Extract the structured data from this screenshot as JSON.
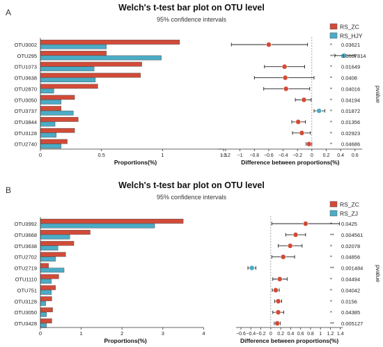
{
  "panels": [
    {
      "panel_label": "A",
      "title": "Welch's t-test bar plot on OTU level",
      "subtitle": "95% confidence intervals",
      "legend": [
        {
          "label": "RS_ZC",
          "color": "#d24b38"
        },
        {
          "label": "RS_HJY",
          "color": "#4bacc6"
        }
      ],
      "bar_xlabel": "Proportions(%)",
      "diff_xlabel": "Difference between proportions(%)",
      "pvalue_label": "pvalue",
      "bar_ticks": [
        "0",
        "0.5",
        "1",
        "1.5"
      ],
      "diff_ticks": [
        "−1.2",
        "−1",
        "−0.8",
        "−0.6",
        "−0.4",
        "−0.2",
        "0",
        "0.2",
        "0.4",
        "0.6"
      ],
      "otus": [
        "OTU3002",
        "OTU295",
        "OTU1073",
        "OTU3638",
        "OTU2870",
        "OTU3050",
        "OTU3737",
        "OTU3844",
        "OTU3128",
        "OTU2740"
      ],
      "stars": [
        "*",
        "***",
        "*",
        "*",
        "*",
        "*",
        "*",
        "*",
        "*",
        "*"
      ],
      "pvalues": [
        "0.03621",
        "0.0007814",
        "0.01649",
        "0.0408",
        "0.04016",
        "0.04194",
        "0.01872",
        "0.01356",
        "0.02923",
        "0.04686"
      ]
    },
    {
      "panel_label": "B",
      "title": "Welch's t-test bar plot on OTU level",
      "subtitle": "95% confidence intervals",
      "legend": [
        {
          "label": "RS_ZC",
          "color": "#d24b38"
        },
        {
          "label": "RS_ZJ",
          "color": "#4bacc6"
        }
      ],
      "bar_xlabel": "Proportions(%)",
      "diff_xlabel": "Difference between proportions(%)",
      "pvalue_label": "pvalue",
      "bar_ticks": [
        "0",
        "1",
        "2",
        "3",
        "4"
      ],
      "diff_ticks": [
        "−0.6",
        "−0.4",
        "−0.2",
        "0",
        "0.2",
        "0.4",
        "0.6",
        "0.8",
        "1",
        "1.2",
        "1.4"
      ],
      "otus": [
        "OTU3992",
        "OTU3668",
        "OTU3638",
        "OTU2702",
        "OTU2719",
        "OTU1110",
        "OTU751",
        "OTU3128",
        "OTU3050",
        "OTU3428"
      ],
      "stars": [
        "*",
        "**",
        "*",
        "*",
        "**",
        "*",
        "*",
        "*",
        "*",
        "**"
      ],
      "pvalues": [
        "0.0425",
        "0.004561",
        "0.02078",
        "0.04856",
        "0.001484",
        "0.04494",
        "0.04042",
        "0.0156",
        "0.04385",
        "0.005127"
      ]
    }
  ],
  "chart_data": [
    {
      "type": "bar",
      "title": "Welch's t-test bar plot on OTU level",
      "subtitle": "95% confidence intervals",
      "xlabel": "Proportions(%)",
      "categories": [
        "OTU3002",
        "OTU295",
        "OTU1073",
        "OTU3638",
        "OTU2870",
        "OTU3050",
        "OTU3737",
        "OTU3844",
        "OTU3128",
        "OTU2740"
      ],
      "xlim": [
        0,
        1.5
      ],
      "series": [
        {
          "name": "RS_ZC",
          "color": "#d24b38",
          "values": [
            1.14,
            0.54,
            0.83,
            0.82,
            0.47,
            0.28,
            0.17,
            0.31,
            0.28,
            0.22
          ]
        },
        {
          "name": "RS_HJY",
          "color": "#4bacc6",
          "values": [
            0.54,
            0.99,
            0.44,
            0.45,
            0.11,
            0.17,
            0.27,
            0.12,
            0.13,
            0.17
          ]
        }
      ]
    },
    {
      "type": "scatter",
      "title": "Welch's t-test bar plot on OTU level",
      "xlabel": "Difference between proportions(%)",
      "categories": [
        "OTU3002",
        "OTU295",
        "OTU1073",
        "OTU3638",
        "OTU2870",
        "OTU3050",
        "OTU3737",
        "OTU3844",
        "OTU3128",
        "OTU2740"
      ],
      "xlim": [
        -1.3,
        0.7
      ],
      "diff": [
        -0.6,
        0.45,
        -0.38,
        -0.37,
        -0.36,
        -0.11,
        0.1,
        -0.19,
        -0.14,
        -0.04
      ],
      "ci_low": [
        -1.12,
        0.32,
        -0.66,
        -0.8,
        -0.67,
        -0.23,
        0.03,
        -0.28,
        -0.27,
        -0.08
      ],
      "ci_high": [
        -0.06,
        0.6,
        -0.1,
        0.03,
        -0.03,
        -0.01,
        0.18,
        -0.09,
        -0.02,
        0.0
      ],
      "favored": [
        "RS_ZC",
        "RS_HJY",
        "RS_ZC",
        "RS_ZC",
        "RS_ZC",
        "RS_ZC",
        "RS_HJY",
        "RS_ZC",
        "RS_ZC",
        "RS_ZC"
      ],
      "pvalues": [
        "0.03621",
        "0.0007814",
        "0.01649",
        "0.0408",
        "0.04016",
        "0.04194",
        "0.01872",
        "0.01356",
        "0.02923",
        "0.04686"
      ]
    },
    {
      "type": "bar",
      "title": "Welch's t-test bar plot on OTU level",
      "subtitle": "95% confidence intervals",
      "xlabel": "Proportions(%)",
      "categories": [
        "OTU3992",
        "OTU3668",
        "OTU3638",
        "OTU2702",
        "OTU2719",
        "OTU1110",
        "OTU751",
        "OTU3128",
        "OTU3050",
        "OTU3428"
      ],
      "xlim": [
        0,
        4
      ],
      "series": [
        {
          "name": "RS_ZC",
          "color": "#d24b38",
          "values": [
            3.5,
            1.22,
            0.82,
            0.62,
            0.2,
            0.45,
            0.37,
            0.28,
            0.3,
            0.28
          ]
        },
        {
          "name": "RS_ZJ",
          "color": "#4bacc6",
          "values": [
            2.8,
            0.72,
            0.43,
            0.37,
            0.58,
            0.27,
            0.27,
            0.13,
            0.15,
            0.15
          ]
        }
      ]
    },
    {
      "type": "scatter",
      "title": "Welch's t-test bar plot on OTU level",
      "xlabel": "Difference between proportions(%)",
      "categories": [
        "OTU3992",
        "OTU3668",
        "OTU3638",
        "OTU2702",
        "OTU2719",
        "OTU1110",
        "OTU751",
        "OTU3128",
        "OTU3050",
        "OTU3428"
      ],
      "xlim": [
        -0.7,
        1.45
      ],
      "diff": [
        0.7,
        0.5,
        0.39,
        0.25,
        -0.38,
        0.18,
        0.1,
        0.15,
        0.15,
        0.13
      ],
      "ci_low": [
        0.02,
        0.3,
        0.15,
        0.02,
        -0.46,
        0.04,
        0.03,
        0.08,
        0.04,
        0.07
      ],
      "ci_high": [
        1.38,
        0.7,
        0.63,
        0.48,
        -0.3,
        0.33,
        0.17,
        0.22,
        0.26,
        0.19
      ],
      "favored": [
        "RS_ZC",
        "RS_ZC",
        "RS_ZC",
        "RS_ZC",
        "RS_ZJ",
        "RS_ZC",
        "RS_ZC",
        "RS_ZC",
        "RS_ZC",
        "RS_ZC"
      ],
      "pvalues": [
        "0.0425",
        "0.004561",
        "0.02078",
        "0.04856",
        "0.001484",
        "0.04494",
        "0.04042",
        "0.0156",
        "0.04385",
        "0.005127"
      ]
    }
  ]
}
